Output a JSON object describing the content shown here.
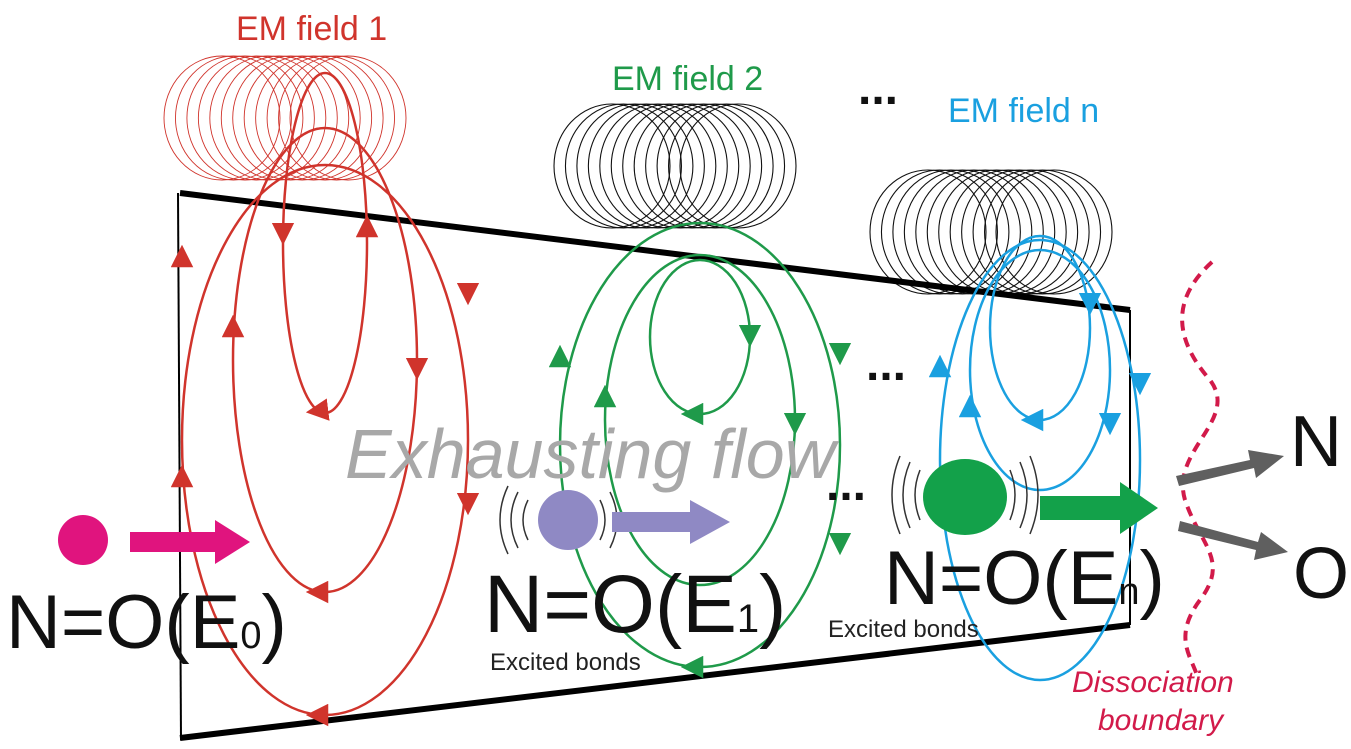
{
  "fields": [
    {
      "label": "EM field 1",
      "color": "#d0342c"
    },
    {
      "label": "EM field 2",
      "color": "#1f9a4a"
    },
    {
      "label": "EM field n",
      "color": "#1aa0e0"
    }
  ],
  "coil_colors": [
    "#d0342c",
    "#111111",
    "#111111"
  ],
  "ellipsis": "...",
  "flow_label": "Exhausting flow",
  "flow_color": "#a8a8a8",
  "molecules": [
    {
      "prefix": "N=O(E",
      "subscript": "0",
      "suffix": ")",
      "color": "#e0147e",
      "note": ""
    },
    {
      "prefix": "N=O(E",
      "subscript": "1",
      "suffix": ")",
      "color": "#8f89c4",
      "note": "Excited bonds"
    },
    {
      "prefix": "N=O(E",
      "subscript": "n",
      "suffix": ")",
      "color": "#13a14a",
      "note": "Excited bonds"
    }
  ],
  "products": [
    "N",
    "O"
  ],
  "product_color": "#5f5f5f",
  "boundary": {
    "line1": "Dissociation",
    "line2": "boundary",
    "color": "#d21a4a"
  }
}
